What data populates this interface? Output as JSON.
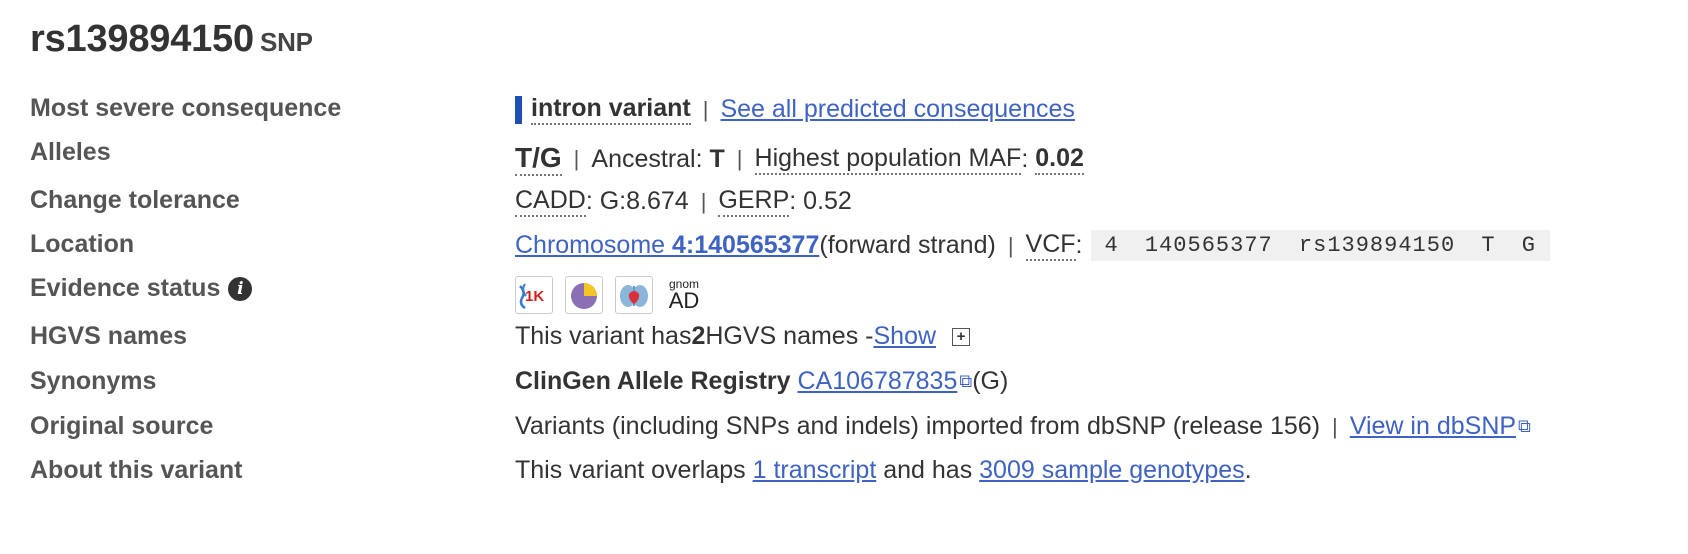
{
  "header": {
    "rsid": "rs139894150",
    "type": "SNP"
  },
  "rows": {
    "consequence": {
      "label": "Most severe consequence",
      "value": "intron variant",
      "link": "See all predicted consequences",
      "bar_color": "#1f4fb3"
    },
    "alleles": {
      "label": "Alleles",
      "alleles": "T/G",
      "ancestral_label": "Ancestral:",
      "ancestral_value": "T",
      "maf_label": "Highest population MAF",
      "maf_colon": ":",
      "maf_value": "0.02"
    },
    "tolerance": {
      "label": "Change tolerance",
      "cadd_label": "CADD",
      "cadd_value": ": G:8.674",
      "gerp_label": "GERP",
      "gerp_value": ": 0.52"
    },
    "location": {
      "label": "Location",
      "link_prefix": "Chromosome ",
      "link_bold": "4:140565377",
      "strand": " (forward strand)",
      "vcf_label": "VCF",
      "vcf_colon": ":",
      "vcf_value": "4  140565377  rs139894150  T  G"
    },
    "evidence": {
      "label": "Evidence status",
      "info_glyph": "i",
      "icons": [
        "1000-genomes-icon",
        "frequency-icon",
        "cited-icon",
        "gnomad-icon"
      ],
      "gnomad_top": "gnom",
      "gnomad_bottom": "AD",
      "kg_text": "1K"
    },
    "hgvs": {
      "label": "HGVS names",
      "prefix": "This variant has ",
      "count": "2",
      "suffix": " HGVS names - ",
      "show_link": "Show",
      "plus": "+"
    },
    "synonyms": {
      "label": "Synonyms",
      "source": "ClinGen Allele Registry",
      "id_link": "CA106787835",
      "allele": " (G)"
    },
    "source": {
      "label": "Original source",
      "text": "Variants (including SNPs and indels) imported from dbSNP (release 156)",
      "link": "View in dbSNP"
    },
    "about": {
      "label": "About this variant",
      "prefix": "This variant overlaps ",
      "transcript_link": "1 transcript",
      "middle": " and has ",
      "genotypes_link": "3009 sample genotypes",
      "end": "."
    }
  },
  "colors": {
    "link": "#3f63c4",
    "label": "#555555",
    "accent": "#1f4fb3"
  },
  "separator": "|",
  "ext_glyph": "⧉"
}
